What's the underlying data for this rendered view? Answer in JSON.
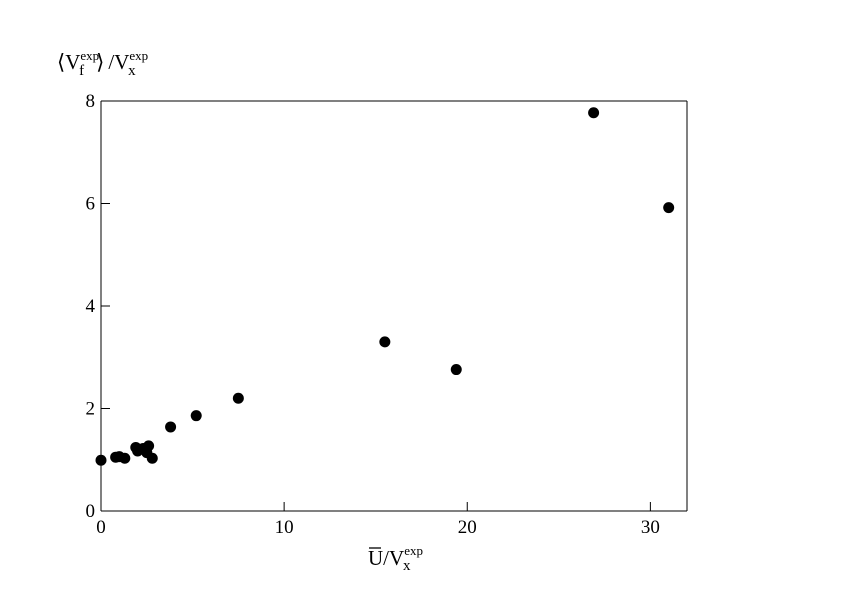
{
  "chart_data": {
    "type": "scatter",
    "ylabel": {
      "open": "⟨",
      "v1": "V",
      "v1_sub": "f",
      "v1_sup": "exp",
      "close": "⟩",
      "slash": "/",
      "v2": "V",
      "v2_sub": "x",
      "v2_sup": "exp"
    },
    "xlabel": {
      "u": "U",
      "slash": "/",
      "v": "V",
      "v_sub": "x",
      "v_sup": "exp"
    },
    "xlim": [
      0,
      32
    ],
    "ylim": [
      0,
      8
    ],
    "xticks": [
      0,
      10,
      20,
      30
    ],
    "yticks": [
      0,
      2,
      4,
      6,
      8
    ],
    "xtick_labels": [
      "0",
      "10",
      "20",
      "30"
    ],
    "ytick_labels": [
      "0",
      "2",
      "4",
      "6",
      "8"
    ],
    "grid": false,
    "marker_color": "#000000",
    "series": [
      {
        "x": [
          0.0,
          0.8,
          1.0,
          1.3,
          1.9,
          2.0,
          2.3,
          2.5,
          2.6,
          2.8,
          3.8,
          5.2,
          7.5,
          15.5,
          19.4,
          26.9,
          31.0
        ],
        "y": [
          0.99,
          1.05,
          1.06,
          1.03,
          1.24,
          1.17,
          1.22,
          1.14,
          1.27,
          1.03,
          1.64,
          1.86,
          2.2,
          3.3,
          2.76,
          7.77,
          5.92
        ]
      }
    ]
  }
}
